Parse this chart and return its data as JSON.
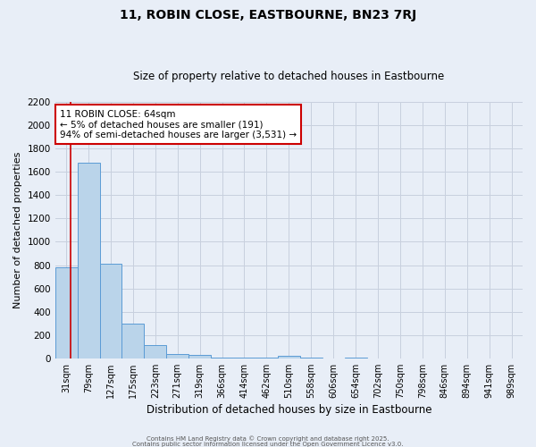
{
  "title": "11, ROBIN CLOSE, EASTBOURNE, BN23 7RJ",
  "subtitle": "Size of property relative to detached houses in Eastbourne",
  "xlabel": "Distribution of detached houses by size in Eastbourne",
  "ylabel": "Number of detached properties",
  "bar_labels": [
    "31sqm",
    "79sqm",
    "127sqm",
    "175sqm",
    "223sqm",
    "271sqm",
    "319sqm",
    "366sqm",
    "414sqm",
    "462sqm",
    "510sqm",
    "558sqm",
    "606sqm",
    "654sqm",
    "702sqm",
    "750sqm",
    "798sqm",
    "846sqm",
    "894sqm",
    "941sqm",
    "989sqm"
  ],
  "bar_values": [
    780,
    1680,
    810,
    300,
    115,
    40,
    30,
    10,
    5,
    5,
    20,
    5,
    0,
    5,
    0,
    0,
    0,
    0,
    0,
    0,
    0
  ],
  "bar_color": "#bad4ea",
  "bar_edge_color": "#5b9bd5",
  "bg_color": "#e8eef7",
  "grid_color": "#c8d0de",
  "annotation_title": "11 ROBIN CLOSE: 64sqm",
  "annotation_line1": "← 5% of detached houses are smaller (191)",
  "annotation_line2": "94% of semi-detached houses are larger (3,531) →",
  "annotation_box_color": "#ffffff",
  "annotation_border_color": "#cc0000",
  "footer1": "Contains HM Land Registry data © Crown copyright and database right 2025.",
  "footer2": "Contains public sector information licensed under the Open Government Licence v3.0.",
  "ylim": [
    0,
    2200
  ],
  "yticks": [
    0,
    200,
    400,
    600,
    800,
    1000,
    1200,
    1400,
    1600,
    1800,
    2000,
    2200
  ]
}
